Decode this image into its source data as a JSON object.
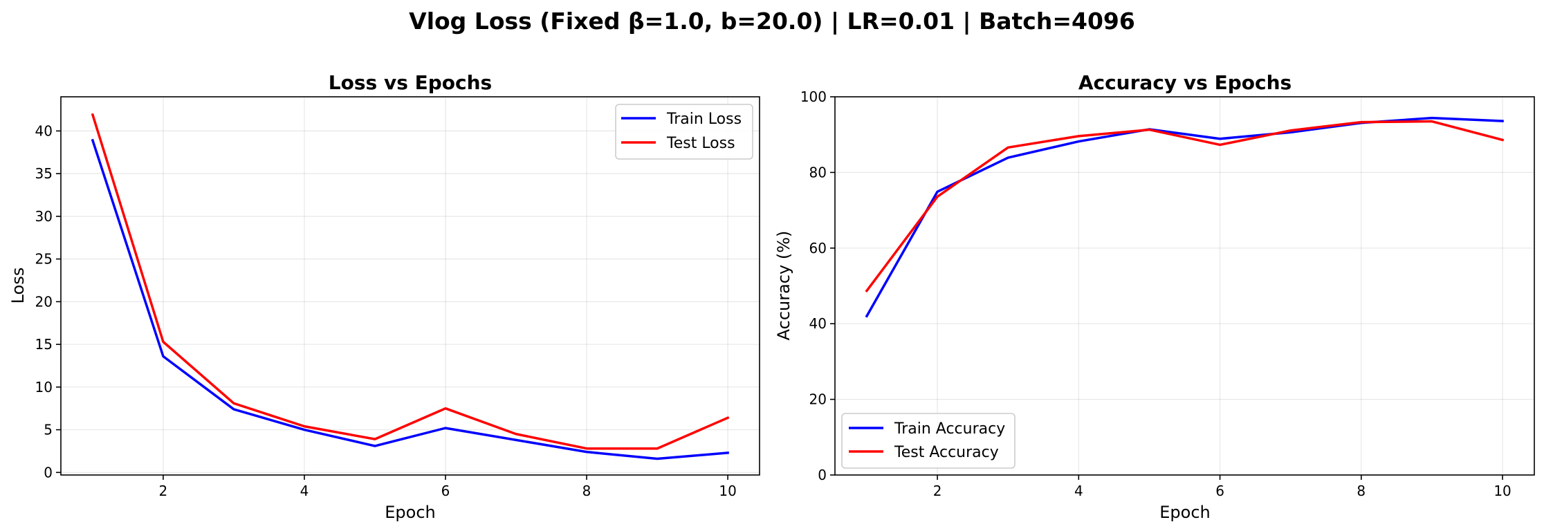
{
  "figure": {
    "suptitle": "Vlog Loss (Fixed β=1.0, b=20.0) | LR=0.01 | Batch=4096"
  },
  "chart_data": [
    {
      "type": "line",
      "title": "Loss vs Epochs",
      "xlabel": "Epoch",
      "ylabel": "Loss",
      "x": [
        1,
        2,
        3,
        4,
        5,
        6,
        7,
        8,
        9,
        10
      ],
      "series": [
        {
          "name": "Train Loss",
          "color": "#0000ff",
          "values": [
            38.9,
            13.6,
            7.4,
            5.0,
            3.1,
            5.2,
            3.8,
            2.4,
            1.6,
            2.3
          ]
        },
        {
          "name": "Test Loss",
          "color": "#ff0000",
          "values": [
            41.9,
            15.3,
            8.1,
            5.4,
            3.9,
            7.5,
            4.5,
            2.8,
            2.8,
            6.4
          ]
        }
      ],
      "xlim": [
        0.55,
        10.45
      ],
      "ylim": [
        -0.3,
        44.0
      ],
      "xticks": [
        2,
        4,
        6,
        8,
        10
      ],
      "yticks": [
        0,
        5,
        10,
        15,
        20,
        25,
        30,
        35,
        40
      ],
      "grid": true,
      "legend_loc": "upper right"
    },
    {
      "type": "line",
      "title": "Accuracy vs Epochs",
      "xlabel": "Epoch",
      "ylabel": "Accuracy (%)",
      "x": [
        1,
        2,
        3,
        4,
        5,
        6,
        7,
        8,
        9,
        10
      ],
      "series": [
        {
          "name": "Train Accuracy",
          "color": "#0000ff",
          "values": [
            42.0,
            74.9,
            83.9,
            88.2,
            91.4,
            88.9,
            90.6,
            93.1,
            94.4,
            93.6
          ]
        },
        {
          "name": "Test Accuracy",
          "color": "#ff0000",
          "values": [
            48.7,
            73.6,
            86.6,
            89.6,
            91.3,
            87.3,
            91.1,
            93.3,
            93.5,
            88.6
          ]
        }
      ],
      "xlim": [
        0.55,
        10.45
      ],
      "ylim": [
        0,
        100
      ],
      "xticks": [
        2,
        4,
        6,
        8,
        10
      ],
      "yticks": [
        0,
        20,
        40,
        60,
        80,
        100
      ],
      "grid": true,
      "legend_loc": "lower left"
    }
  ]
}
